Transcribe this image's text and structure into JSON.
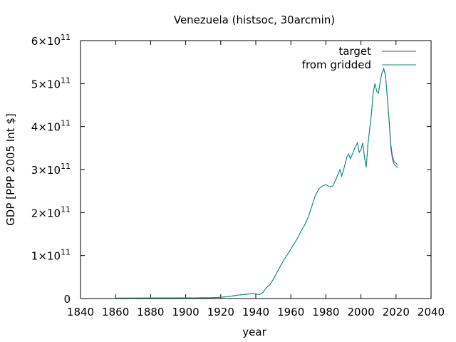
{
  "chart_data": {
    "type": "line",
    "title": "Venezuela (histsoc, 30arcmin)",
    "xlabel": "year",
    "ylabel": "GDP [PPP 2005 Int $]",
    "xlim": [
      1840,
      2040
    ],
    "ylim": [
      0,
      600000000000
    ],
    "grid": false,
    "legend_position": "top-right",
    "x_ticks": [
      1840,
      1860,
      1880,
      1900,
      1920,
      1940,
      1960,
      1980,
      2000,
      2020,
      2040
    ],
    "x_tick_labels": [
      "1840",
      "1860",
      "1880",
      "1900",
      "1920",
      "1940",
      "1960",
      "1980",
      "2000",
      "2020",
      "2040"
    ],
    "y_ticks": [
      {
        "value": 0,
        "mantissa": "0",
        "exponent": ""
      },
      {
        "value": 100000000000,
        "mantissa": "1×10",
        "exponent": "11"
      },
      {
        "value": 200000000000,
        "mantissa": "2×10",
        "exponent": "11"
      },
      {
        "value": 300000000000,
        "mantissa": "3×10",
        "exponent": "11"
      },
      {
        "value": 400000000000,
        "mantissa": "4×10",
        "exponent": "11"
      },
      {
        "value": 500000000000,
        "mantissa": "5×10",
        "exponent": "11"
      },
      {
        "value": 600000000000,
        "mantissa": "6×10",
        "exponent": "11"
      }
    ],
    "x": [
      1860,
      1880,
      1900,
      1915,
      1920,
      1925,
      1930,
      1935,
      1938,
      1940,
      1942,
      1944,
      1946,
      1948,
      1950,
      1952,
      1954,
      1956,
      1958,
      1960,
      1962,
      1964,
      1966,
      1968,
      1970,
      1972,
      1974,
      1976,
      1978,
      1980,
      1982,
      1984,
      1986,
      1988,
      1989,
      1990,
      1992,
      1993,
      1994,
      1996,
      1997,
      1998,
      1999,
      2000,
      2001,
      2002,
      2003,
      2004,
      2005,
      2006,
      2007,
      2008,
      2009,
      2010,
      2011,
      2012,
      2013,
      2014,
      2015,
      2016,
      2017,
      2018,
      2019,
      2020,
      2021
    ],
    "series": [
      {
        "name": "target",
        "color": "#8a1ea8",
        "values": [
          1000000000,
          1200000000,
          1500000000,
          2000000000,
          3000000000,
          5000000000,
          8000000000,
          10000000000,
          12000000000,
          11000000000,
          9000000000,
          14000000000,
          25000000000,
          32000000000,
          45000000000,
          60000000000,
          75000000000,
          90000000000,
          102000000000,
          115000000000,
          128000000000,
          142000000000,
          158000000000,
          172000000000,
          190000000000,
          215000000000,
          240000000000,
          255000000000,
          262000000000,
          265000000000,
          260000000000,
          262000000000,
          280000000000,
          300000000000,
          285000000000,
          298000000000,
          330000000000,
          336000000000,
          325000000000,
          345000000000,
          355000000000,
          362000000000,
          340000000000,
          346000000000,
          362000000000,
          330000000000,
          305000000000,
          360000000000,
          395000000000,
          430000000000,
          480000000000,
          500000000000,
          482000000000,
          478000000000,
          505000000000,
          525000000000,
          535000000000,
          520000000000,
          470000000000,
          420000000000,
          360000000000,
          330000000000,
          318000000000,
          315000000000,
          310000000000
        ]
      },
      {
        "name": "from gridded",
        "color": "#00957a",
        "values": [
          1000000000,
          1200000000,
          1500000000,
          2000000000,
          3000000000,
          5000000000,
          8000000000,
          10000000000,
          12000000000,
          11000000000,
          9000000000,
          14000000000,
          25000000000,
          32000000000,
          45000000000,
          60000000000,
          75000000000,
          90000000000,
          102000000000,
          115000000000,
          128000000000,
          142000000000,
          158000000000,
          172000000000,
          190000000000,
          215000000000,
          240000000000,
          255000000000,
          262000000000,
          265000000000,
          260000000000,
          262000000000,
          280000000000,
          300000000000,
          285000000000,
          298000000000,
          330000000000,
          336000000000,
          325000000000,
          345000000000,
          355000000000,
          362000000000,
          340000000000,
          346000000000,
          362000000000,
          330000000000,
          305000000000,
          360000000000,
          395000000000,
          430000000000,
          480000000000,
          500000000000,
          482000000000,
          478000000000,
          505000000000,
          525000000000,
          533000000000,
          518000000000,
          468000000000,
          415000000000,
          352000000000,
          322000000000,
          312000000000,
          308000000000,
          304000000000
        ]
      }
    ]
  }
}
